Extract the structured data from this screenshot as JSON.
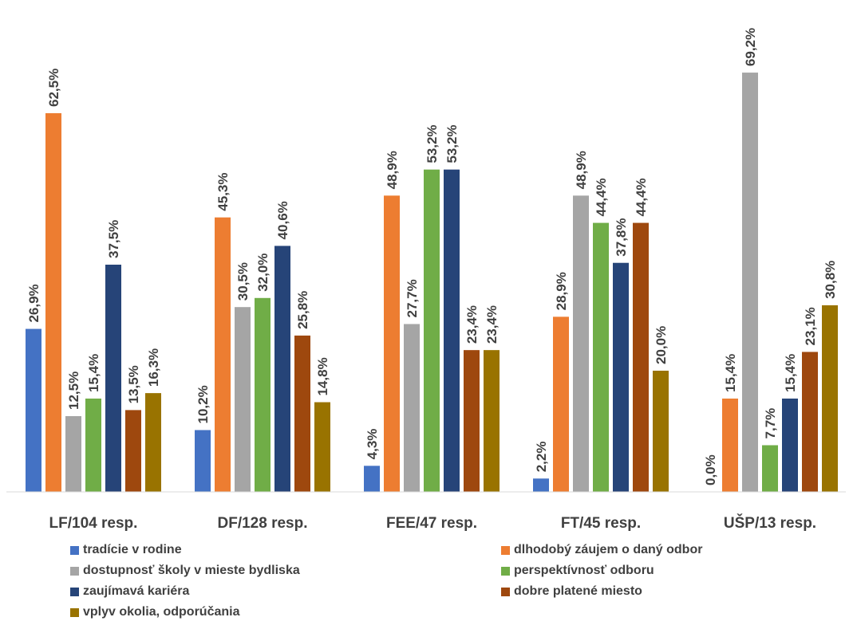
{
  "chart_data": {
    "type": "bar",
    "title": "",
    "xlabel": "",
    "ylabel": "",
    "ylim": [
      0,
      75
    ],
    "grid": false,
    "legend_position": "bottom",
    "categories": [
      "LF/104 resp.",
      "DF/128 resp.",
      "FEE/47 resp.",
      "FT/45 resp.",
      "UŠP/13 resp."
    ],
    "series": [
      {
        "name": "tradície v rodine",
        "color": "#4472C4",
        "values": [
          26.9,
          10.2,
          4.3,
          2.2,
          0.0
        ],
        "labels": [
          "26,9%",
          "10,2%",
          "4,3%",
          "2,2%",
          "0,0%"
        ]
      },
      {
        "name": "dlhodobý záujem o daný odbor",
        "color": "#ED7D31",
        "values": [
          62.5,
          45.3,
          48.9,
          28.9,
          15.4
        ],
        "labels": [
          "62,5%",
          "45,3%",
          "48,9%",
          "28,9%",
          "15,4%"
        ]
      },
      {
        "name": "dostupnosť školy v mieste bydliska",
        "color": "#A5A5A5",
        "values": [
          12.5,
          30.5,
          27.7,
          48.9,
          69.2
        ],
        "labels": [
          "12,5%",
          "30,5%",
          "27,7%",
          "48,9%",
          "69,2%"
        ]
      },
      {
        "name": "perspektívnosť odboru",
        "color": "#70AD47",
        "values": [
          15.4,
          32.0,
          53.2,
          44.4,
          7.7
        ],
        "labels": [
          "15,4%",
          "32,0%",
          "53,2%",
          "44,4%",
          "7,7%"
        ]
      },
      {
        "name": "zaujímavá kariéra",
        "color": "#264478",
        "values": [
          37.5,
          40.6,
          53.2,
          37.8,
          15.4
        ],
        "labels": [
          "37,5%",
          "40,6%",
          "53,2%",
          "37,8%",
          "15,4%"
        ]
      },
      {
        "name": "dobre platené miesto",
        "color": "#9E480E",
        "values": [
          13.5,
          25.8,
          23.4,
          44.4,
          23.1
        ],
        "labels": [
          "13,5%",
          "25,8%",
          "23,4%",
          "44,4%",
          "23,1%"
        ]
      },
      {
        "name": "vplyv okolia, odporúčania",
        "color": "#997300",
        "values": [
          16.3,
          14.8,
          23.4,
          20.0,
          30.8
        ],
        "labels": [
          "16,3%",
          "14,8%",
          "23,4%",
          "20,0%",
          "30,8%"
        ]
      }
    ]
  }
}
